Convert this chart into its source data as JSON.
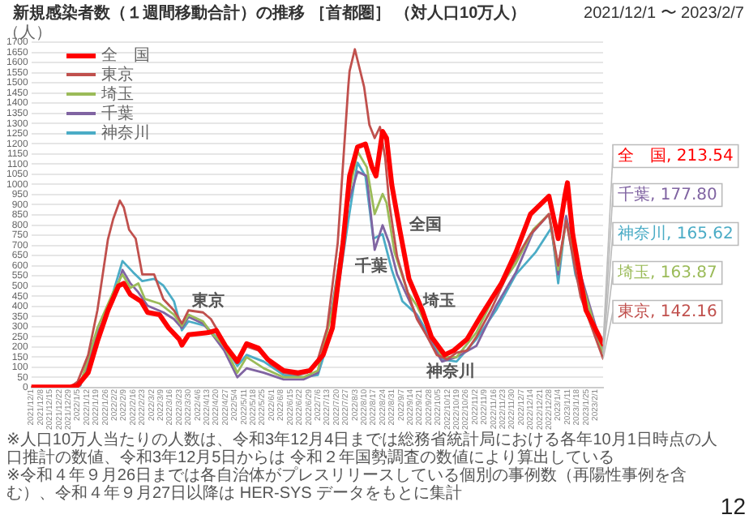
{
  "chart_data": {
    "type": "line",
    "title": "新規感染者数（１週間移動合計）の推移 ［首都圏］ （対人口10万人）",
    "subtitle": "2021/12/1 〜 2023/2/7",
    "ylabel": "（人）",
    "xlim": [
      "2021-12-01",
      "2023-02-07"
    ],
    "ylim": [
      0,
      1700
    ],
    "yticks": [
      0,
      50,
      100,
      150,
      200,
      250,
      300,
      350,
      400,
      450,
      500,
      550,
      600,
      650,
      700,
      750,
      800,
      850,
      900,
      950,
      1000,
      1050,
      1100,
      1150,
      1200,
      1250,
      1300,
      1350,
      1400,
      1450,
      1500,
      1550,
      1600,
      1650,
      1700
    ],
    "xticks": [
      {
        "value": "2021-12-01",
        "label": "2021/12/1"
      },
      {
        "value": "2021-12-08",
        "label": "2021/12/8"
      },
      {
        "value": "2021-12-15",
        "label": "2021/12/15"
      },
      {
        "value": "2021-12-22",
        "label": "2021/12/22"
      },
      {
        "value": "2021-12-29",
        "label": "2021/12/29"
      },
      {
        "value": "2022-01-05",
        "label": "2022/1/5"
      },
      {
        "value": "2022-01-12",
        "label": "2022/1/12"
      },
      {
        "value": "2022-01-19",
        "label": "2022/1/19"
      },
      {
        "value": "2022-01-26",
        "label": "2022/1/26"
      },
      {
        "value": "2022-02-02",
        "label": "2022/2/2"
      },
      {
        "value": "2022-02-09",
        "label": "2022/2/9"
      },
      {
        "value": "2022-02-16",
        "label": "2022/2/16"
      },
      {
        "value": "2022-02-23",
        "label": "2022/2/23"
      },
      {
        "value": "2022-03-02",
        "label": "2022/3/2"
      },
      {
        "value": "2022-03-09",
        "label": "2022/3/9"
      },
      {
        "value": "2022-03-16",
        "label": "2022/3/16"
      },
      {
        "value": "2022-03-23",
        "label": "2022/3/23"
      },
      {
        "value": "2022-03-30",
        "label": "2022/3/30"
      },
      {
        "value": "2022-04-06",
        "label": "2022/4/6"
      },
      {
        "value": "2022-04-13",
        "label": "2022/4/13"
      },
      {
        "value": "2022-04-20",
        "label": "2022/4/20"
      },
      {
        "value": "2022-04-27",
        "label": "2022/4/27"
      },
      {
        "value": "2022-05-04",
        "label": "2022/5/4"
      },
      {
        "value": "2022-05-11",
        "label": "2022/5/11"
      },
      {
        "value": "2022-05-18",
        "label": "2022/5/18"
      },
      {
        "value": "2022-05-25",
        "label": "2022/5/25"
      },
      {
        "value": "2022-06-01",
        "label": "2022/6/1"
      },
      {
        "value": "2022-06-08",
        "label": "2022/6/8"
      },
      {
        "value": "2022-06-15",
        "label": "2022/6/15"
      },
      {
        "value": "2022-06-22",
        "label": "2022/6/22"
      },
      {
        "value": "2022-06-29",
        "label": "2022/6/29"
      },
      {
        "value": "2022-07-06",
        "label": "2022/7/6"
      },
      {
        "value": "2022-07-13",
        "label": "2022/7/13"
      },
      {
        "value": "2022-07-20",
        "label": "2022/7/20"
      },
      {
        "value": "2022-07-27",
        "label": "2022/7/27"
      },
      {
        "value": "2022-08-03",
        "label": "2022/8/3"
      },
      {
        "value": "2022-08-10",
        "label": "2022/8/10"
      },
      {
        "value": "2022-08-17",
        "label": "2022/8/17"
      },
      {
        "value": "2022-08-24",
        "label": "2022/8/24"
      },
      {
        "value": "2022-08-31",
        "label": "2022/8/31"
      },
      {
        "value": "2022-09-07",
        "label": "2022/9/7"
      },
      {
        "value": "2022-09-14",
        "label": "2022/9/14"
      },
      {
        "value": "2022-09-21",
        "label": "2022/9/21"
      },
      {
        "value": "2022-09-28",
        "label": "2022/9/28"
      },
      {
        "value": "2022-10-05",
        "label": "2022/10/5"
      },
      {
        "value": "2022-10-12",
        "label": "2022/10/12"
      },
      {
        "value": "2022-10-19",
        "label": "2022/10/19"
      },
      {
        "value": "2022-10-26",
        "label": "2022/10/26"
      },
      {
        "value": "2022-11-02",
        "label": "2022/11/2"
      },
      {
        "value": "2022-11-09",
        "label": "2022/11/9"
      },
      {
        "value": "2022-11-16",
        "label": "2022/11/16"
      },
      {
        "value": "2022-11-23",
        "label": "2022/11/23"
      },
      {
        "value": "2022-11-30",
        "label": "2022/11/30"
      },
      {
        "value": "2022-12-07",
        "label": "2022/12/7"
      },
      {
        "value": "2022-12-14",
        "label": "2022/12/14"
      },
      {
        "value": "2022-12-21",
        "label": "2022/12/21"
      },
      {
        "value": "2022-12-28",
        "label": "2022/12/28"
      },
      {
        "value": "2023-01-04",
        "label": "2023/1/4"
      },
      {
        "value": "2023-01-11",
        "label": "2023/1/11"
      },
      {
        "value": "2023-01-18",
        "label": "2023/1/18"
      },
      {
        "value": "2023-01-25",
        "label": "2023/1/25"
      },
      {
        "value": "2023-02-01",
        "label": "2023/2/1"
      }
    ],
    "grid": "y",
    "legend": "top left",
    "marker": "none",
    "line_style": "solid",
    "series": [
      {
        "name": "全　国",
        "color": "#ff0000",
        "x": [
          "2021-12-01",
          "2021-12-31",
          "2022-01-05",
          "2022-01-13",
          "2022-01-20",
          "2022-01-28",
          "2022-02-05",
          "2022-02-09",
          "2022-02-14",
          "2022-02-22",
          "2022-02-27",
          "2022-03-08",
          "2022-03-15",
          "2022-03-23",
          "2022-03-25",
          "2022-03-30",
          "2022-04-14",
          "2022-04-20",
          "2022-04-27",
          "2022-05-06",
          "2022-05-13",
          "2022-05-22",
          "2022-05-29",
          "2022-06-10",
          "2022-06-21",
          "2022-06-30",
          "2022-07-10",
          "2022-07-17",
          "2022-07-25",
          "2022-07-30",
          "2022-08-05",
          "2022-08-11",
          "2022-08-16",
          "2022-08-19",
          "2022-08-24",
          "2022-08-27",
          "2022-08-31",
          "2022-09-06",
          "2022-09-13",
          "2022-09-23",
          "2022-09-30",
          "2022-10-10",
          "2022-10-17",
          "2022-10-27",
          "2022-11-07",
          "2022-11-22",
          "2022-12-03",
          "2022-12-14",
          "2022-12-28",
          "2023-01-04",
          "2023-01-09",
          "2023-01-11",
          "2023-01-15",
          "2023-01-25",
          "2023-02-07"
        ],
        "values": [
          3,
          4,
          10,
          73,
          227,
          380,
          500,
          513,
          458,
          425,
          370,
          359,
          293,
          238,
          209,
          260,
          271,
          282,
          205,
          128,
          216,
          194,
          139,
          84,
          73,
          84,
          161,
          293,
          711,
          1041,
          1184,
          1199,
          1085,
          1041,
          1261,
          1228,
          997,
          777,
          535,
          381,
          249,
          161,
          183,
          238,
          359,
          513,
          667,
          854,
          942,
          733,
          942,
          1008,
          755,
          381,
          213.54
        ],
        "value_labels": [
          null,
          null,
          null,
          null,
          null,
          null,
          null,
          null,
          null,
          null,
          null,
          null,
          null,
          null,
          null,
          null,
          null,
          null,
          null,
          null,
          null,
          null,
          null,
          null,
          null,
          null,
          null,
          null,
          null,
          null,
          null,
          null,
          null,
          null,
          null,
          null,
          null,
          null,
          null,
          null,
          null,
          null,
          null,
          null,
          null,
          null,
          null,
          null,
          null,
          null,
          null,
          null,
          null,
          null,
          "全　国, 213.54"
        ]
      },
      {
        "name": "東京",
        "color": "#c0504d",
        "x": [
          "2021-12-01",
          "2021-12-31",
          "2022-01-05",
          "2022-01-13",
          "2022-01-20",
          "2022-01-28",
          "2022-02-01",
          "2022-02-06",
          "2022-02-09",
          "2022-02-13",
          "2022-02-18",
          "2022-02-23",
          "2022-03-04",
          "2022-03-11",
          "2022-03-19",
          "2022-03-25",
          "2022-03-30",
          "2022-04-10",
          "2022-04-16",
          "2022-04-22",
          "2022-04-29",
          "2022-05-06",
          "2022-05-12",
          "2022-05-22",
          "2022-05-31",
          "2022-06-10",
          "2022-06-21",
          "2022-06-28",
          "2022-07-06",
          "2022-07-13",
          "2022-07-21",
          "2022-07-29",
          "2022-07-30",
          "2022-08-03",
          "2022-08-10",
          "2022-08-14",
          "2022-08-18",
          "2022-08-22",
          "2022-08-26",
          "2022-08-29",
          "2022-09-04",
          "2022-09-12",
          "2022-09-19",
          "2022-09-27",
          "2022-10-04",
          "2022-10-12",
          "2022-10-19",
          "2022-10-27",
          "2022-11-03",
          "2022-11-14",
          "2022-11-29",
          "2022-12-14",
          "2022-12-28",
          "2023-01-04",
          "2023-01-10",
          "2023-01-21",
          "2023-02-07"
        ],
        "values": [
          2,
          5,
          29,
          160,
          380,
          730,
          830,
          920,
          887,
          777,
          733,
          557,
          557,
          435,
          380,
          315,
          380,
          370,
          337,
          270,
          183,
          128,
          205,
          183,
          117,
          73,
          62,
          73,
          139,
          293,
          711,
          1480,
          1558,
          1665,
          1480,
          1293,
          1228,
          1283,
          1129,
          909,
          645,
          469,
          337,
          249,
          161,
          139,
          172,
          183,
          249,
          381,
          590,
          755,
          854,
          600,
          820,
          447,
          142.16
        ],
        "value_labels": [
          null,
          null,
          null,
          null,
          null,
          null,
          null,
          null,
          null,
          null,
          null,
          null,
          null,
          null,
          null,
          null,
          null,
          null,
          null,
          null,
          null,
          null,
          null,
          null,
          null,
          null,
          null,
          null,
          null,
          null,
          null,
          null,
          null,
          null,
          null,
          null,
          null,
          null,
          null,
          null,
          null,
          null,
          null,
          null,
          null,
          null,
          null,
          null,
          null,
          null,
          null,
          null,
          null,
          null,
          null,
          null,
          "東京, 142.16"
        ]
      },
      {
        "name": "埼玉",
        "color": "#9bbb59",
        "x": [
          "2021-12-01",
          "2021-12-31",
          "2022-01-07",
          "2022-01-20",
          "2022-02-01",
          "2022-02-08",
          "2022-02-14",
          "2022-02-20",
          "2022-02-25",
          "2022-03-08",
          "2022-03-19",
          "2022-03-25",
          "2022-03-30",
          "2022-04-10",
          "2022-04-16",
          "2022-04-26",
          "2022-05-06",
          "2022-05-13",
          "2022-05-26",
          "2022-06-10",
          "2022-06-25",
          "2022-07-06",
          "2022-07-17",
          "2022-07-29",
          "2022-08-05",
          "2022-08-12",
          "2022-08-18",
          "2022-08-24",
          "2022-08-27",
          "2022-09-02",
          "2022-09-12",
          "2022-09-19",
          "2022-09-27",
          "2022-10-08",
          "2022-10-19",
          "2022-11-03",
          "2022-11-18",
          "2022-12-03",
          "2022-12-16",
          "2022-12-28",
          "2023-01-04",
          "2023-01-10",
          "2023-01-17",
          "2023-02-07"
        ],
        "values": [
          2,
          4,
          15,
          293,
          469,
          557,
          491,
          513,
          436,
          414,
          359,
          304,
          359,
          326,
          271,
          205,
          73,
          150,
          95,
          51,
          51,
          84,
          381,
          931,
          1162,
          1085,
          854,
          953,
          909,
          667,
          469,
          403,
          293,
          150,
          150,
          271,
          469,
          612,
          777,
          854,
          579,
          821,
          623,
          163.87
        ],
        "value_labels": [
          null,
          null,
          null,
          null,
          null,
          null,
          null,
          null,
          null,
          null,
          null,
          null,
          null,
          null,
          null,
          null,
          null,
          null,
          null,
          null,
          null,
          null,
          null,
          null,
          null,
          null,
          null,
          null,
          null,
          null,
          null,
          null,
          null,
          null,
          null,
          null,
          null,
          null,
          null,
          null,
          null,
          null,
          null,
          "埼玉, 163.87"
        ]
      },
      {
        "name": "千葉",
        "color": "#8064a2",
        "x": [
          "2021-12-01",
          "2021-12-31",
          "2022-01-07",
          "2022-01-20",
          "2022-02-01",
          "2022-02-08",
          "2022-02-14",
          "2022-02-20",
          "2022-02-27",
          "2022-03-11",
          "2022-03-19",
          "2022-03-25",
          "2022-03-30",
          "2022-04-10",
          "2022-04-16",
          "2022-04-26",
          "2022-05-06",
          "2022-05-13",
          "2022-05-26",
          "2022-06-10",
          "2022-06-25",
          "2022-07-06",
          "2022-07-17",
          "2022-07-29",
          "2022-08-05",
          "2022-08-12",
          "2022-08-18",
          "2022-08-24",
          "2022-08-29",
          "2022-09-04",
          "2022-09-15",
          "2022-09-27",
          "2022-10-08",
          "2022-10-19",
          "2022-11-03",
          "2022-11-18",
          "2022-12-03",
          "2022-12-16",
          "2022-12-28",
          "2023-01-04",
          "2023-01-10",
          "2023-01-17",
          "2023-02-07"
        ],
        "values": [
          2,
          4,
          12,
          271,
          425,
          579,
          513,
          469,
          403,
          370,
          337,
          293,
          348,
          315,
          271,
          183,
          51,
          95,
          73,
          40,
          40,
          73,
          403,
          909,
          1063,
          1041,
          678,
          799,
          711,
          557,
          403,
          249,
          128,
          150,
          205,
          403,
          568,
          766,
          854,
          557,
          843,
          645,
          177.8
        ],
        "value_labels": [
          null,
          null,
          null,
          null,
          null,
          null,
          null,
          null,
          null,
          null,
          null,
          null,
          null,
          null,
          null,
          null,
          null,
          null,
          null,
          null,
          null,
          null,
          null,
          null,
          null,
          null,
          null,
          null,
          null,
          null,
          null,
          null,
          null,
          null,
          null,
          null,
          null,
          null,
          null,
          null,
          null,
          null,
          "千葉, 177.80"
        ]
      },
      {
        "name": "神奈川",
        "color": "#4bacc6",
        "x": [
          "2021-12-01",
          "2021-12-31",
          "2022-01-07",
          "2022-01-20",
          "2022-02-01",
          "2022-02-08",
          "2022-02-16",
          "2022-02-23",
          "2022-03-04",
          "2022-03-11",
          "2022-03-19",
          "2022-03-25",
          "2022-03-30",
          "2022-04-12",
          "2022-04-20",
          "2022-04-29",
          "2022-05-06",
          "2022-05-13",
          "2022-05-26",
          "2022-06-10",
          "2022-06-25",
          "2022-07-06",
          "2022-07-17",
          "2022-07-29",
          "2022-08-05",
          "2022-08-11",
          "2022-08-17",
          "2022-08-24",
          "2022-08-31",
          "2022-09-08",
          "2022-09-19",
          "2022-09-29",
          "2022-10-08",
          "2022-10-19",
          "2022-11-03",
          "2022-11-18",
          "2022-12-03",
          "2022-12-18",
          "2022-12-30",
          "2023-01-04",
          "2023-01-10",
          "2023-01-17",
          "2023-02-07"
        ],
        "values": [
          2,
          4,
          10,
          249,
          469,
          623,
          568,
          524,
          535,
          502,
          425,
          282,
          326,
          304,
          249,
          183,
          106,
          161,
          128,
          62,
          51,
          62,
          293,
          821,
          1107,
          1041,
          733,
          755,
          579,
          425,
          359,
          249,
          139,
          128,
          238,
          381,
          557,
          667,
          788,
          513,
          843,
          557,
          165.62
        ],
        "value_labels": [
          null,
          null,
          null,
          null,
          null,
          null,
          null,
          null,
          null,
          null,
          null,
          null,
          null,
          null,
          null,
          null,
          null,
          null,
          null,
          null,
          null,
          null,
          null,
          null,
          null,
          null,
          null,
          null,
          null,
          null,
          null,
          null,
          null,
          null,
          null,
          null,
          null,
          null,
          null,
          null,
          null,
          null,
          "神奈川, 165.62"
        ]
      }
    ],
    "annotations": [
      "東京",
      "全国",
      "千葉",
      "埼玉",
      "神奈川",
      "※人口10万人当たりの人数は、令和3年12月4日までは総務省統計局における各年10月1日時点の人口推計の数値、令和3年12月5日からは 令和２年国勢調査の数値により算出している",
      "※令和４年９月26日までは各自治体がプレスリリースしている個別の事例数（再陽性事例を含む）、令和４年９月27日以降は HER-SYS データをもとに集計",
      "12"
    ]
  }
}
